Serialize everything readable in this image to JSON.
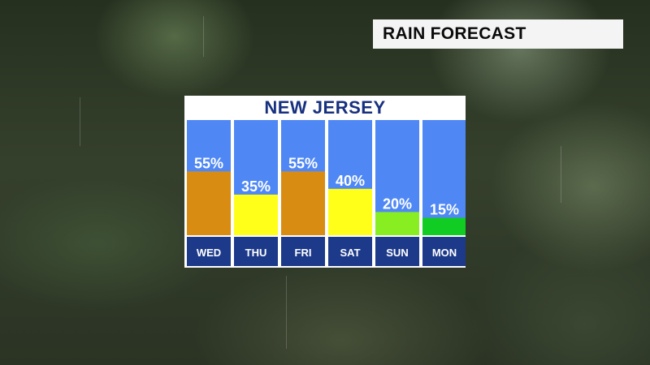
{
  "banner": {
    "title": "RAIN FORECAST"
  },
  "chart_data": {
    "type": "bar",
    "title": "NEW JERSEY",
    "categories": [
      "WED",
      "THU",
      "FRI",
      "SAT",
      "SUN",
      "MON"
    ],
    "values": [
      55,
      35,
      55,
      40,
      20,
      15
    ],
    "value_labels": [
      "55%",
      "35%",
      "55%",
      "40%",
      "20%",
      "15%"
    ],
    "bar_colors": [
      "#d98c12",
      "#ffff1a",
      "#d98c12",
      "#ffff1a",
      "#88ee22",
      "#11cc22"
    ],
    "column_background": "#4f88f4",
    "day_label_background": "#1d3a8a",
    "ylim": [
      0,
      100
    ]
  }
}
